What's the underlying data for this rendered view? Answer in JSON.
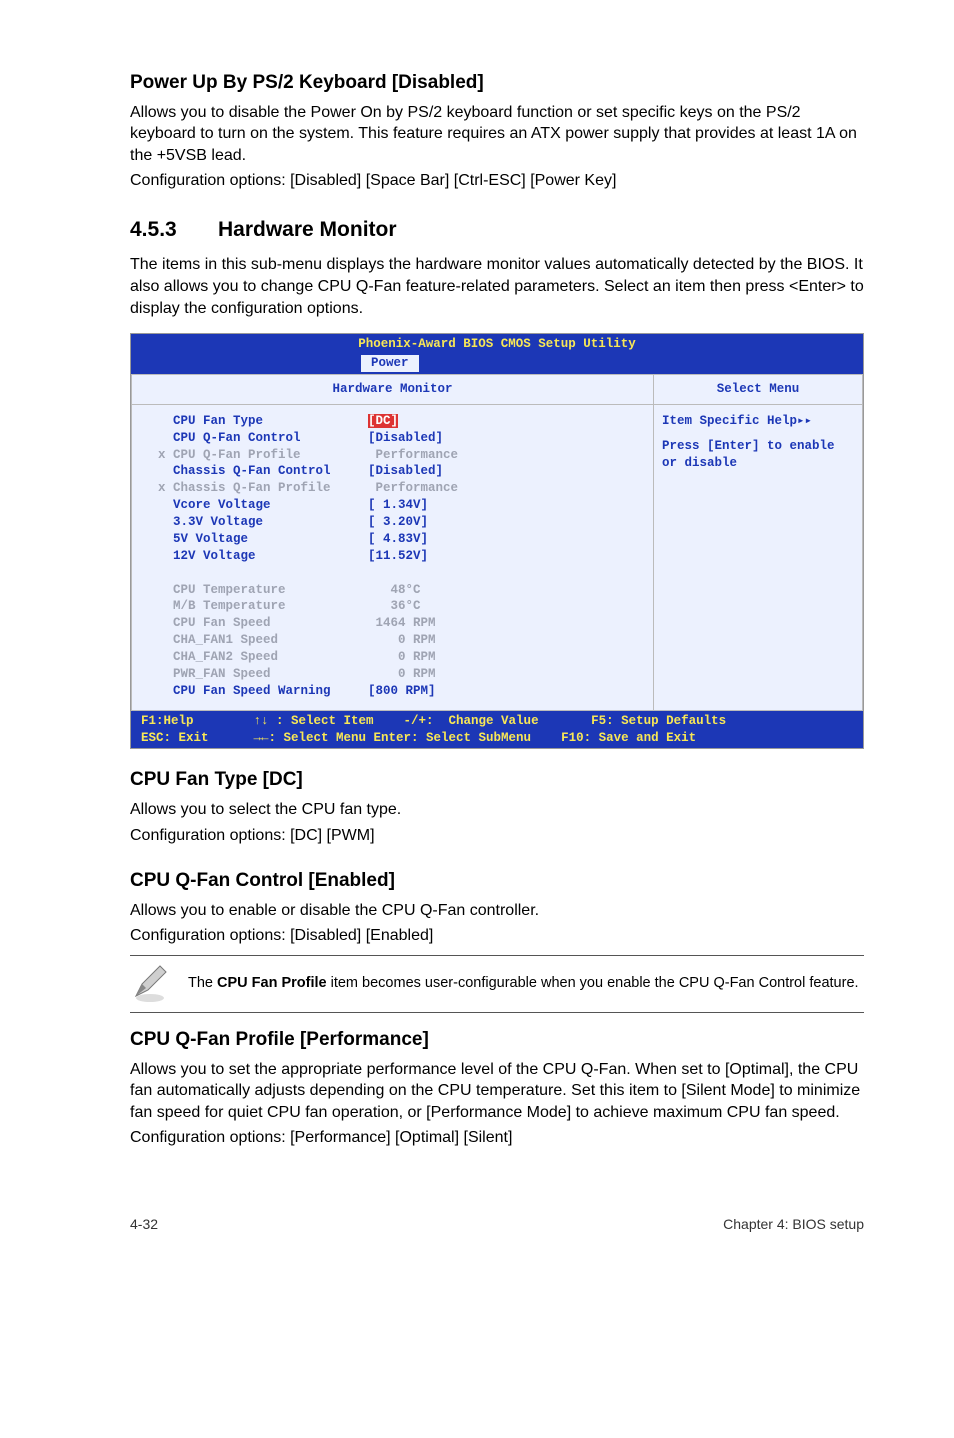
{
  "sec1": {
    "title": "Power Up By PS/2 Keyboard [Disabled]",
    "body": "Allows you to disable the Power On by PS/2 keyboard function or set specific keys on the PS/2 keyboard to turn on the system. This feature requires an ATX power supply that provides at least 1A on the +5VSB lead.",
    "config": "Configuration options: [Disabled] [Space Bar] [Ctrl-ESC] [Power Key]"
  },
  "heading": {
    "num": "4.5.3",
    "text": "Hardware Monitor"
  },
  "intro": "The items in this sub-menu displays the hardware monitor values automatically detected by the BIOS. It also allows you to change CPU Q-Fan feature-related parameters. Select an item then press <Enter> to display the configuration options.",
  "bios": {
    "title": "Phoenix-Award BIOS CMOS Setup Utility",
    "tab": "Power",
    "left_header": "Hardware Monitor",
    "right_header": "Select Menu",
    "help_title": "Item Specific Help▸▸",
    "help_body": "Press [Enter] to enable or disable",
    "rows": [
      {
        "label": "CPU Fan Type",
        "value": "[DC]",
        "dim": false,
        "prefix": " ",
        "hl": true
      },
      {
        "label": "CPU Q-Fan Control",
        "value": "[Disabled]",
        "dim": false,
        "prefix": " "
      },
      {
        "label": "CPU Q-Fan Profile",
        "value": " Performance",
        "dim": true,
        "prefix": "x"
      },
      {
        "label": "Chassis Q-Fan Control",
        "value": "[Disabled]",
        "dim": false,
        "prefix": " "
      },
      {
        "label": "Chassis Q-Fan Profile",
        "value": " Performance",
        "dim": true,
        "prefix": "x"
      },
      {
        "label": "Vcore Voltage",
        "value": "[ 1.34V]",
        "dim": false,
        "prefix": " "
      },
      {
        "label": "3.3V Voltage",
        "value": "[ 3.20V]",
        "dim": false,
        "prefix": " "
      },
      {
        "label": "5V Voltage",
        "value": "[ 4.83V]",
        "dim": false,
        "prefix": " "
      },
      {
        "label": "12V Voltage",
        "value": "[11.52V]",
        "dim": false,
        "prefix": " "
      }
    ],
    "rows2": [
      {
        "label": "CPU Temperature",
        "value": "   48°C",
        "dim": true,
        "prefix": " "
      },
      {
        "label": "M/B Temperature",
        "value": "   36°C",
        "dim": true,
        "prefix": " "
      },
      {
        "label": "CPU Fan Speed",
        "value": " 1464 RPM",
        "dim": true,
        "prefix": " "
      },
      {
        "label": "CHA_FAN1 Speed",
        "value": "    0 RPM",
        "dim": true,
        "prefix": " "
      },
      {
        "label": "CHA_FAN2 Speed",
        "value": "    0 RPM",
        "dim": true,
        "prefix": " "
      },
      {
        "label": "PWR_FAN Speed",
        "value": "    0 RPM",
        "dim": true,
        "prefix": " "
      },
      {
        "label": "CPU Fan Speed Warning",
        "value": "[800 RPM]",
        "dim": false,
        "prefix": " "
      }
    ],
    "footer_l1": "F1:Help        ↑↓ : Select Item    -/+:  Change Value       F5: Setup Defaults",
    "footer_l2": "ESC: Exit      →←: Select Menu Enter: Select SubMenu    F10: Save and Exit"
  },
  "sec_cpu_fan_type": {
    "title": "CPU Fan Type [DC]",
    "body": "Allows you to select the CPU fan type.",
    "config": "Configuration options: [DC] [PWM]"
  },
  "sec_qfan_control": {
    "title": "CPU Q-Fan Control [Enabled]",
    "body": "Allows you to enable or disable the CPU Q-Fan controller.",
    "config": "Configuration options: [Disabled] [Enabled]"
  },
  "note": {
    "text_prefix": "The ",
    "bold": "CPU Fan Profile",
    "text_suffix": " item becomes user-configurable when you enable the CPU Q-Fan Control feature."
  },
  "sec_qfan_profile": {
    "title": "CPU Q-Fan Profile [Performance]",
    "body": "Allows you to set the appropriate performance level of the CPU Q-Fan. When set to [Optimal], the CPU fan automatically adjusts depending on the CPU temperature. Set this item to [Silent Mode] to minimize fan speed for quiet CPU fan operation, or [Performance Mode] to achieve maximum CPU fan speed.",
    "config": "Configuration options: [Performance] [Optimal] [Silent]"
  },
  "footer": {
    "left": "4-32",
    "right": "Chapter 4: BIOS setup"
  }
}
